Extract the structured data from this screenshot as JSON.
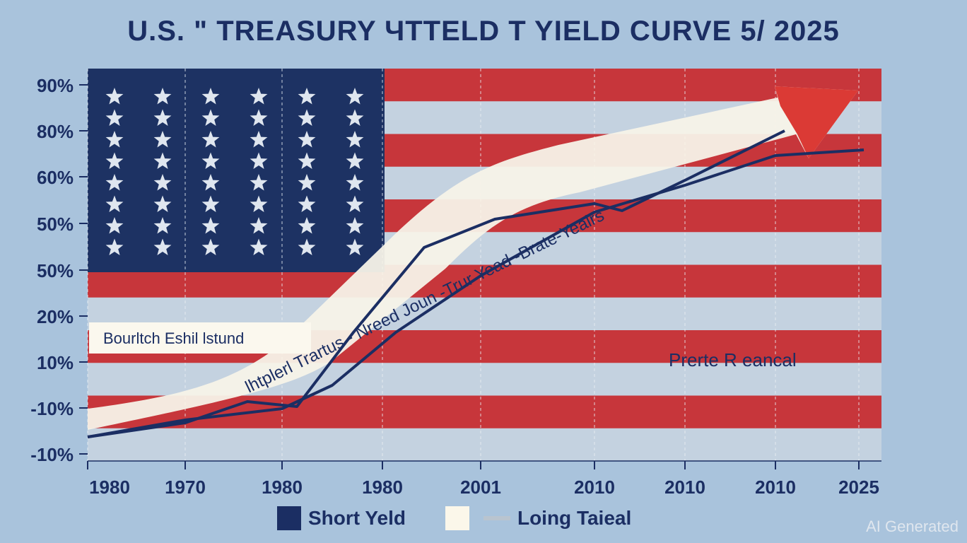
{
  "title": "U.S. \" TREASURY ЧTTELD T YIELD CURVE 5/ 2025",
  "watermark": "AI Generated",
  "chart_data": {
    "type": "line",
    "y_ticks": [
      "90%",
      "80%",
      "60%",
      "50%",
      "50%",
      "20%",
      "10%",
      "-10%",
      "-10%"
    ],
    "x_ticks": [
      "1980",
      "1970",
      "1980",
      "1980",
      "2001",
      "2010",
      "2010",
      "2010",
      "2025"
    ],
    "x": [
      1980,
      1970,
      1980,
      1980,
      2001,
      2010,
      2010,
      2010,
      2025
    ],
    "series": [
      {
        "name": "Short Yeld",
        "color": "#1b2e63",
        "values": [
          -8,
          -5,
          -2,
          12,
          25,
          45,
          57,
          68,
          78
        ]
      },
      {
        "name": "Loing Taieal",
        "color": "#1b2e63",
        "values": [
          -8,
          -4,
          3,
          3,
          42,
          55,
          56,
          67,
          82
        ]
      }
    ],
    "annotations": [
      "Bourltch Eshil lstund",
      "lhtplerl Trartus - Nreed Joun -Trur Yead -Brate-Yealrs",
      "Prerte R eancal"
    ],
    "grid": true,
    "legend": "bottom",
    "background": "US flag"
  },
  "colors": {
    "navy": "#1b2e63",
    "red": "#c7363b",
    "stripe_light": "#c4d2e0",
    "canton": "#1d3263",
    "arrow_body": "#f7f3e8",
    "arrow_head": "#db3a35"
  }
}
